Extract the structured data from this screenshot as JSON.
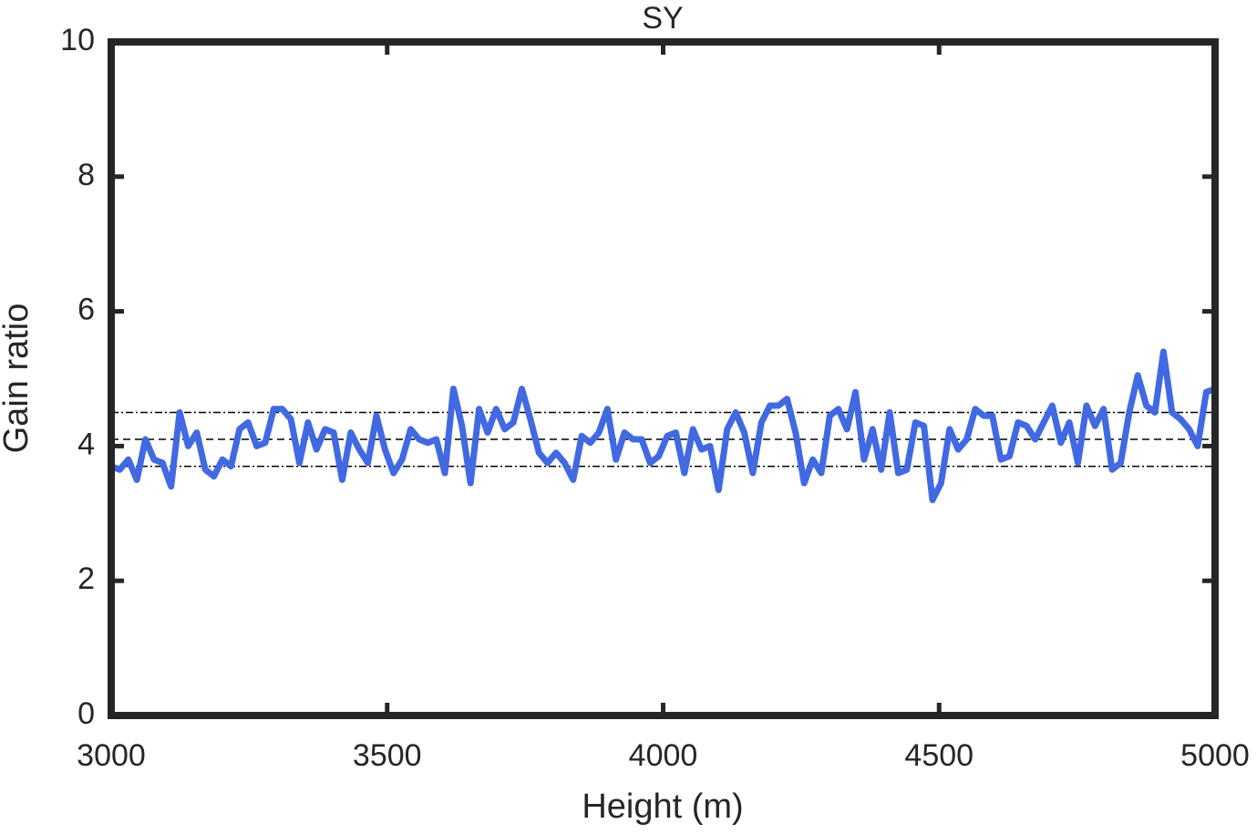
{
  "chart_data": {
    "type": "line",
    "title": "SY",
    "xlabel": "Height (m)",
    "ylabel": "Gain ratio",
    "x": [
      3000,
      3015.5,
      3031,
      3046.5,
      3062,
      3077.5,
      3093,
      3108.5,
      3124,
      3139.5,
      3155,
      3170.5,
      3186,
      3201.5,
      3217,
      3232.5,
      3248,
      3263.5,
      3279,
      3294.5,
      3310,
      3325.5,
      3341,
      3356.5,
      3372,
      3387.5,
      3403,
      3418.5,
      3434,
      3449.5,
      3465,
      3480.5,
      3496,
      3511.5,
      3527,
      3542.5,
      3558,
      3573.5,
      3589,
      3604.5,
      3620,
      3635.5,
      3651,
      3666.5,
      3682,
      3697.5,
      3713,
      3728.5,
      3744,
      3759.5,
      3775,
      3790.5,
      3806,
      3821.5,
      3837,
      3852.5,
      3868,
      3883.5,
      3899,
      3914.5,
      3930,
      3945.5,
      3961,
      3976.5,
      3992,
      4007.5,
      4023,
      4038.5,
      4054,
      4069.5,
      4085,
      4100.5,
      4116,
      4131.5,
      4147,
      4162.5,
      4178,
      4193.5,
      4209,
      4224.5,
      4240,
      4255.5,
      4271,
      4286.5,
      4302,
      4317.5,
      4333,
      4348.5,
      4364,
      4379.5,
      4395,
      4410.5,
      4426,
      4441.5,
      4457,
      4472.5,
      4488,
      4503.5,
      4519,
      4534.5,
      4550,
      4565.5,
      4581,
      4596.5,
      4612,
      4627.5,
      4643,
      4658.5,
      4674,
      4689.5,
      4705,
      4720.5,
      4736,
      4751.5,
      4767,
      4782.5,
      4798,
      4813.5,
      4829,
      4844.5,
      4860,
      4875.5,
      4891,
      4906.5,
      4922,
      4937.5,
      4953,
      4968.5,
      4984,
      4999.5
    ],
    "series": [
      {
        "color": "#4169e1",
        "values": [
          3.7,
          3.65,
          3.8,
          3.5,
          4.1,
          3.8,
          3.75,
          3.4,
          4.5,
          4.0,
          4.2,
          3.65,
          3.55,
          3.8,
          3.7,
          4.25,
          4.35,
          4.0,
          4.05,
          4.55,
          4.55,
          4.4,
          3.75,
          4.35,
          3.95,
          4.25,
          4.2,
          3.5,
          4.2,
          3.95,
          3.75,
          4.45,
          3.95,
          3.6,
          3.8,
          4.25,
          4.1,
          4.05,
          4.1,
          3.6,
          4.85,
          4.3,
          3.45,
          4.55,
          4.2,
          4.55,
          4.25,
          4.35,
          4.85,
          4.4,
          3.9,
          3.75,
          3.9,
          3.75,
          3.5,
          4.15,
          4.05,
          4.2,
          4.55,
          3.8,
          4.2,
          4.1,
          4.1,
          3.75,
          3.85,
          4.15,
          4.2,
          3.6,
          4.25,
          3.95,
          4.0,
          3.35,
          4.25,
          4.5,
          4.2,
          3.6,
          4.35,
          4.6,
          4.6,
          4.7,
          4.2,
          3.45,
          3.8,
          3.6,
          4.45,
          4.55,
          4.25,
          4.8,
          3.8,
          4.25,
          3.65,
          4.5,
          3.6,
          3.65,
          4.35,
          4.3,
          3.2,
          3.45,
          4.25,
          3.95,
          4.1,
          4.55,
          4.45,
          4.45,
          3.8,
          3.85,
          4.35,
          4.3,
          4.1,
          4.35,
          4.6,
          4.05,
          4.35,
          3.75,
          4.6,
          4.3,
          4.55,
          3.65,
          3.75,
          4.5,
          5.05,
          4.6,
          4.5,
          5.4,
          4.5,
          4.4,
          4.25,
          4.0,
          4.8,
          4.85
        ]
      }
    ],
    "hlines": [
      {
        "value": 4.5,
        "style": "dashdot"
      },
      {
        "value": 4.1,
        "style": "dashed"
      },
      {
        "value": 3.7,
        "style": "dashdot"
      }
    ],
    "xlim": [
      3000,
      5000
    ],
    "xticks": [
      3000,
      3500,
      4000,
      4500,
      5000
    ],
    "ylim": [
      0,
      10
    ],
    "yticks": [
      0,
      2,
      4,
      6,
      8,
      10
    ],
    "grid": false
  }
}
